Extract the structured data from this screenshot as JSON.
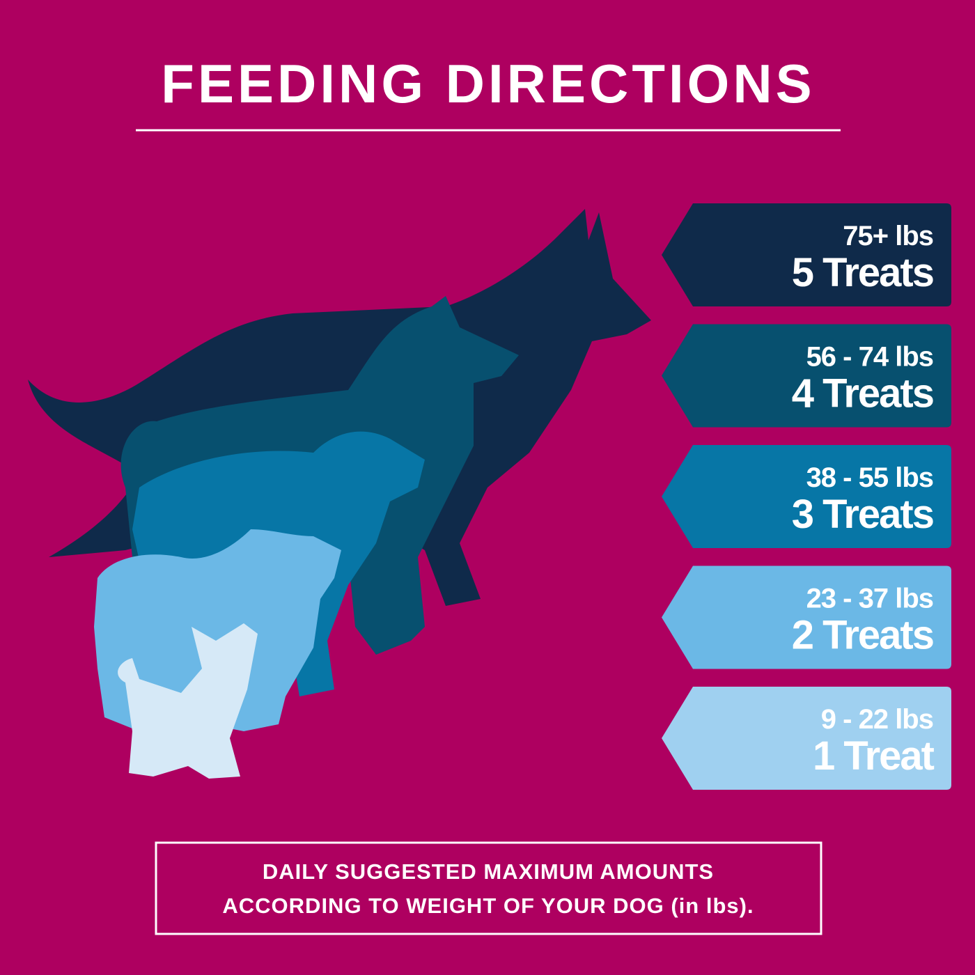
{
  "header": {
    "title": "FEEDING DIRECTIONS"
  },
  "tiers": [
    {
      "weight": "75+ lbs",
      "amount": "5 Treats"
    },
    {
      "weight": "56 - 74 lbs",
      "amount": "4 Treats"
    },
    {
      "weight": "38 - 55 lbs",
      "amount": "3 Treats"
    },
    {
      "weight": "23 - 37 lbs",
      "amount": "2 Treats"
    },
    {
      "weight": "9 - 22 lbs",
      "amount": "1 Treat"
    }
  ],
  "footer": {
    "lines": [
      "DAILY SUGGESTED MAXIMUM AMOUNTS",
      "ACCORDING TO WEIGHT OF YOUR DOG (in lbs)."
    ]
  }
}
